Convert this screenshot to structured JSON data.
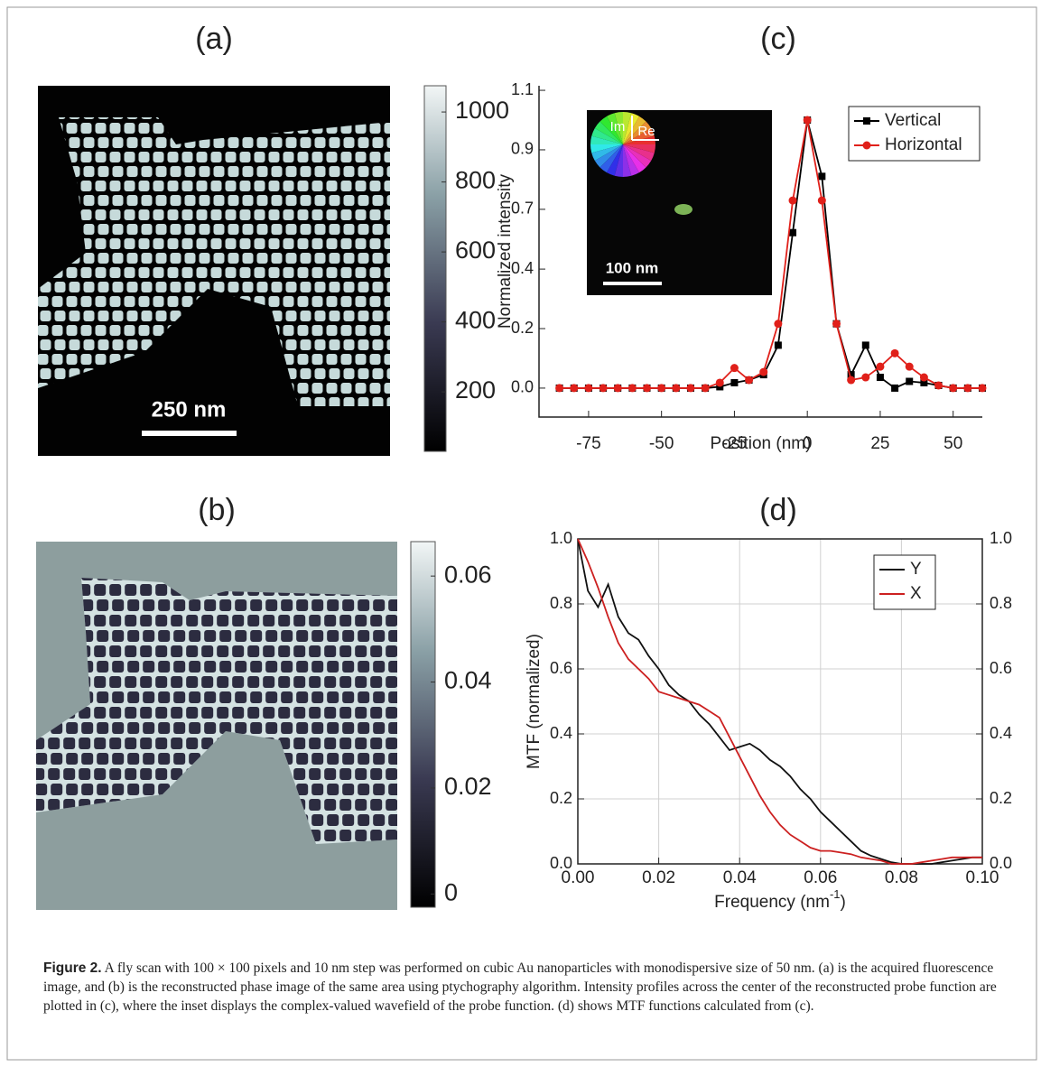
{
  "panels": [
    {
      "label": "(a)",
      "scale_bar": "250 nm",
      "colorbar": {
        "lim": [
          30,
          1075
        ],
        "ticks": [
          200,
          400,
          600,
          800,
          1000
        ]
      }
    },
    {
      "label": "(b)",
      "colorbar": {
        "lim": [
          -0.0025,
          0.0665
        ],
        "ticks": [
          0,
          0.02,
          0.04,
          0.06
        ]
      }
    },
    {
      "label": "(c)",
      "inset": {
        "imag": "Im",
        "real": "Re",
        "scale_bar": "100 nm"
      }
    },
    {
      "label": "(d)"
    }
  ],
  "chart_data": [
    {
      "type": "line",
      "xlabel": [
        "Position (nm)"
      ],
      "ylabel": "Normalized intensity",
      "x": [
        -85,
        -80,
        -75,
        -70,
        -65,
        -60,
        -55,
        -50,
        -45,
        -40,
        -35,
        -30,
        -25,
        -20,
        -15,
        -10,
        -5,
        0,
        5,
        10,
        15,
        20,
        25,
        30,
        35,
        40,
        45,
        50,
        55,
        60
      ],
      "series": [
        {
          "name": "Vertical",
          "color": "#000000",
          "marker": "square",
          "values": [
            0,
            0,
            0,
            0,
            0,
            0,
            0,
            0,
            0,
            0,
            0,
            0.005,
            0.02,
            0.03,
            0.05,
            0.16,
            0.58,
            1.0,
            0.79,
            0.24,
            0.05,
            0.16,
            0.04,
            0.0,
            0.025,
            0.02,
            0.01,
            0,
            0,
            0
          ]
        },
        {
          "name": "Horizontal",
          "color": "#e0201a",
          "marker": "circle",
          "values": [
            0,
            0,
            0,
            0,
            0,
            0,
            0,
            0,
            0,
            0,
            0,
            0.02,
            0.075,
            0.03,
            0.06,
            0.24,
            0.7,
            1.0,
            0.7,
            0.24,
            0.03,
            0.04,
            0.08,
            0.13,
            0.08,
            0.04,
            0.01,
            0,
            0,
            0
          ]
        }
      ],
      "xlim": [
        -92,
        60
      ],
      "xticks": [
        -75,
        -50,
        -25,
        0,
        25,
        50
      ],
      "ylim": [
        -0.108,
        1.128
      ],
      "yticks": [
        {
          "value": 0,
          "label": "0.0"
        },
        {
          "value": 0.222,
          "label": "0.2"
        },
        {
          "value": 0.444,
          "label": "0.4"
        },
        {
          "value": 0.667,
          "label": "0.7"
        },
        {
          "value": 0.889,
          "label": "0.9"
        },
        {
          "value": 1.111,
          "label": "1.1"
        }
      ],
      "grid": false,
      "legend": "upper right"
    },
    {
      "type": "line",
      "xlabel": [
        "Frequency (nm",
        "-1",
        ")"
      ],
      "ylabel": "MTF (normalized)",
      "x": [
        0,
        0.0025,
        0.005,
        0.0075,
        0.01,
        0.0125,
        0.015,
        0.0175,
        0.02,
        0.0225,
        0.025,
        0.0275,
        0.03,
        0.0325,
        0.035,
        0.0375,
        0.04,
        0.0425,
        0.045,
        0.0475,
        0.05,
        0.0525,
        0.055,
        0.0575,
        0.06,
        0.0625,
        0.065,
        0.0675,
        0.07,
        0.0725,
        0.075,
        0.0775,
        0.08,
        0.0825,
        0.085,
        0.0875,
        0.09,
        0.0925,
        0.095,
        0.0975,
        0.1
      ],
      "series": [
        {
          "name": "Y",
          "color": "#111111",
          "values": [
            1.0,
            0.84,
            0.79,
            0.86,
            0.76,
            0.71,
            0.69,
            0.64,
            0.6,
            0.55,
            0.52,
            0.5,
            0.46,
            0.43,
            0.39,
            0.35,
            0.36,
            0.37,
            0.35,
            0.32,
            0.3,
            0.27,
            0.23,
            0.2,
            0.16,
            0.13,
            0.1,
            0.07,
            0.04,
            0.025,
            0.015,
            0.005,
            0,
            0,
            0,
            0,
            0.005,
            0.01,
            0.015,
            0.02,
            0.02
          ]
        },
        {
          "name": "X",
          "color": "#cc2020",
          "values": [
            1.0,
            0.93,
            0.85,
            0.76,
            0.68,
            0.63,
            0.6,
            0.57,
            0.53,
            0.52,
            0.51,
            0.5,
            0.49,
            0.47,
            0.45,
            0.39,
            0.33,
            0.27,
            0.21,
            0.16,
            0.12,
            0.09,
            0.07,
            0.05,
            0.04,
            0.04,
            0.035,
            0.03,
            0.02,
            0.015,
            0.01,
            0,
            0,
            0,
            0.005,
            0.01,
            0.015,
            0.02,
            0.02,
            0.02,
            0.02
          ]
        }
      ],
      "xlim": [
        0,
        0.1
      ],
      "xticks": [
        {
          "value": 0,
          "label": "0.00"
        },
        {
          "value": 0.02,
          "label": "0.02"
        },
        {
          "value": 0.04,
          "label": "0.04"
        },
        {
          "value": 0.06,
          "label": "0.06"
        },
        {
          "value": 0.08,
          "label": "0.08"
        },
        {
          "value": 0.1,
          "label": "0.10"
        }
      ],
      "ylim": [
        0,
        1
      ],
      "yticks": [
        {
          "value": 0,
          "label": "0.0"
        },
        {
          "value": 0.2,
          "label": "0.2"
        },
        {
          "value": 0.4,
          "label": "0.4"
        },
        {
          "value": 0.6,
          "label": "0.6"
        },
        {
          "value": 0.8,
          "label": "0.8"
        },
        {
          "value": 1,
          "label": "1.0"
        }
      ],
      "y2lim": [
        0,
        1
      ],
      "y2ticks": [
        {
          "value": 0,
          "label": "0.0"
        },
        {
          "value": 0.2,
          "label": "0.2"
        },
        {
          "value": 0.4,
          "label": "0.4"
        },
        {
          "value": 0.6,
          "label": "0.6"
        },
        {
          "value": 0.8,
          "label": "0.8"
        },
        {
          "value": 1,
          "label": "1.0"
        }
      ],
      "grid": true,
      "legend": "upper right"
    }
  ],
  "caption": {
    "label": "Figure 2.",
    "text": "A fly scan with 100 × 100 pixels and 10 nm step was performed on cubic Au nanoparticles with monodispersive size of 50 nm. (a) is the acquired fluorescence image, and (b) is the reconstructed phase image of the same area using ptychography algorithm. Intensity profiles across the center of the reconstructed probe function are plotted in (c), where the inset displays the complex-valued wavefield of the probe function. (d) shows MTF functions calculated from (c)."
  }
}
